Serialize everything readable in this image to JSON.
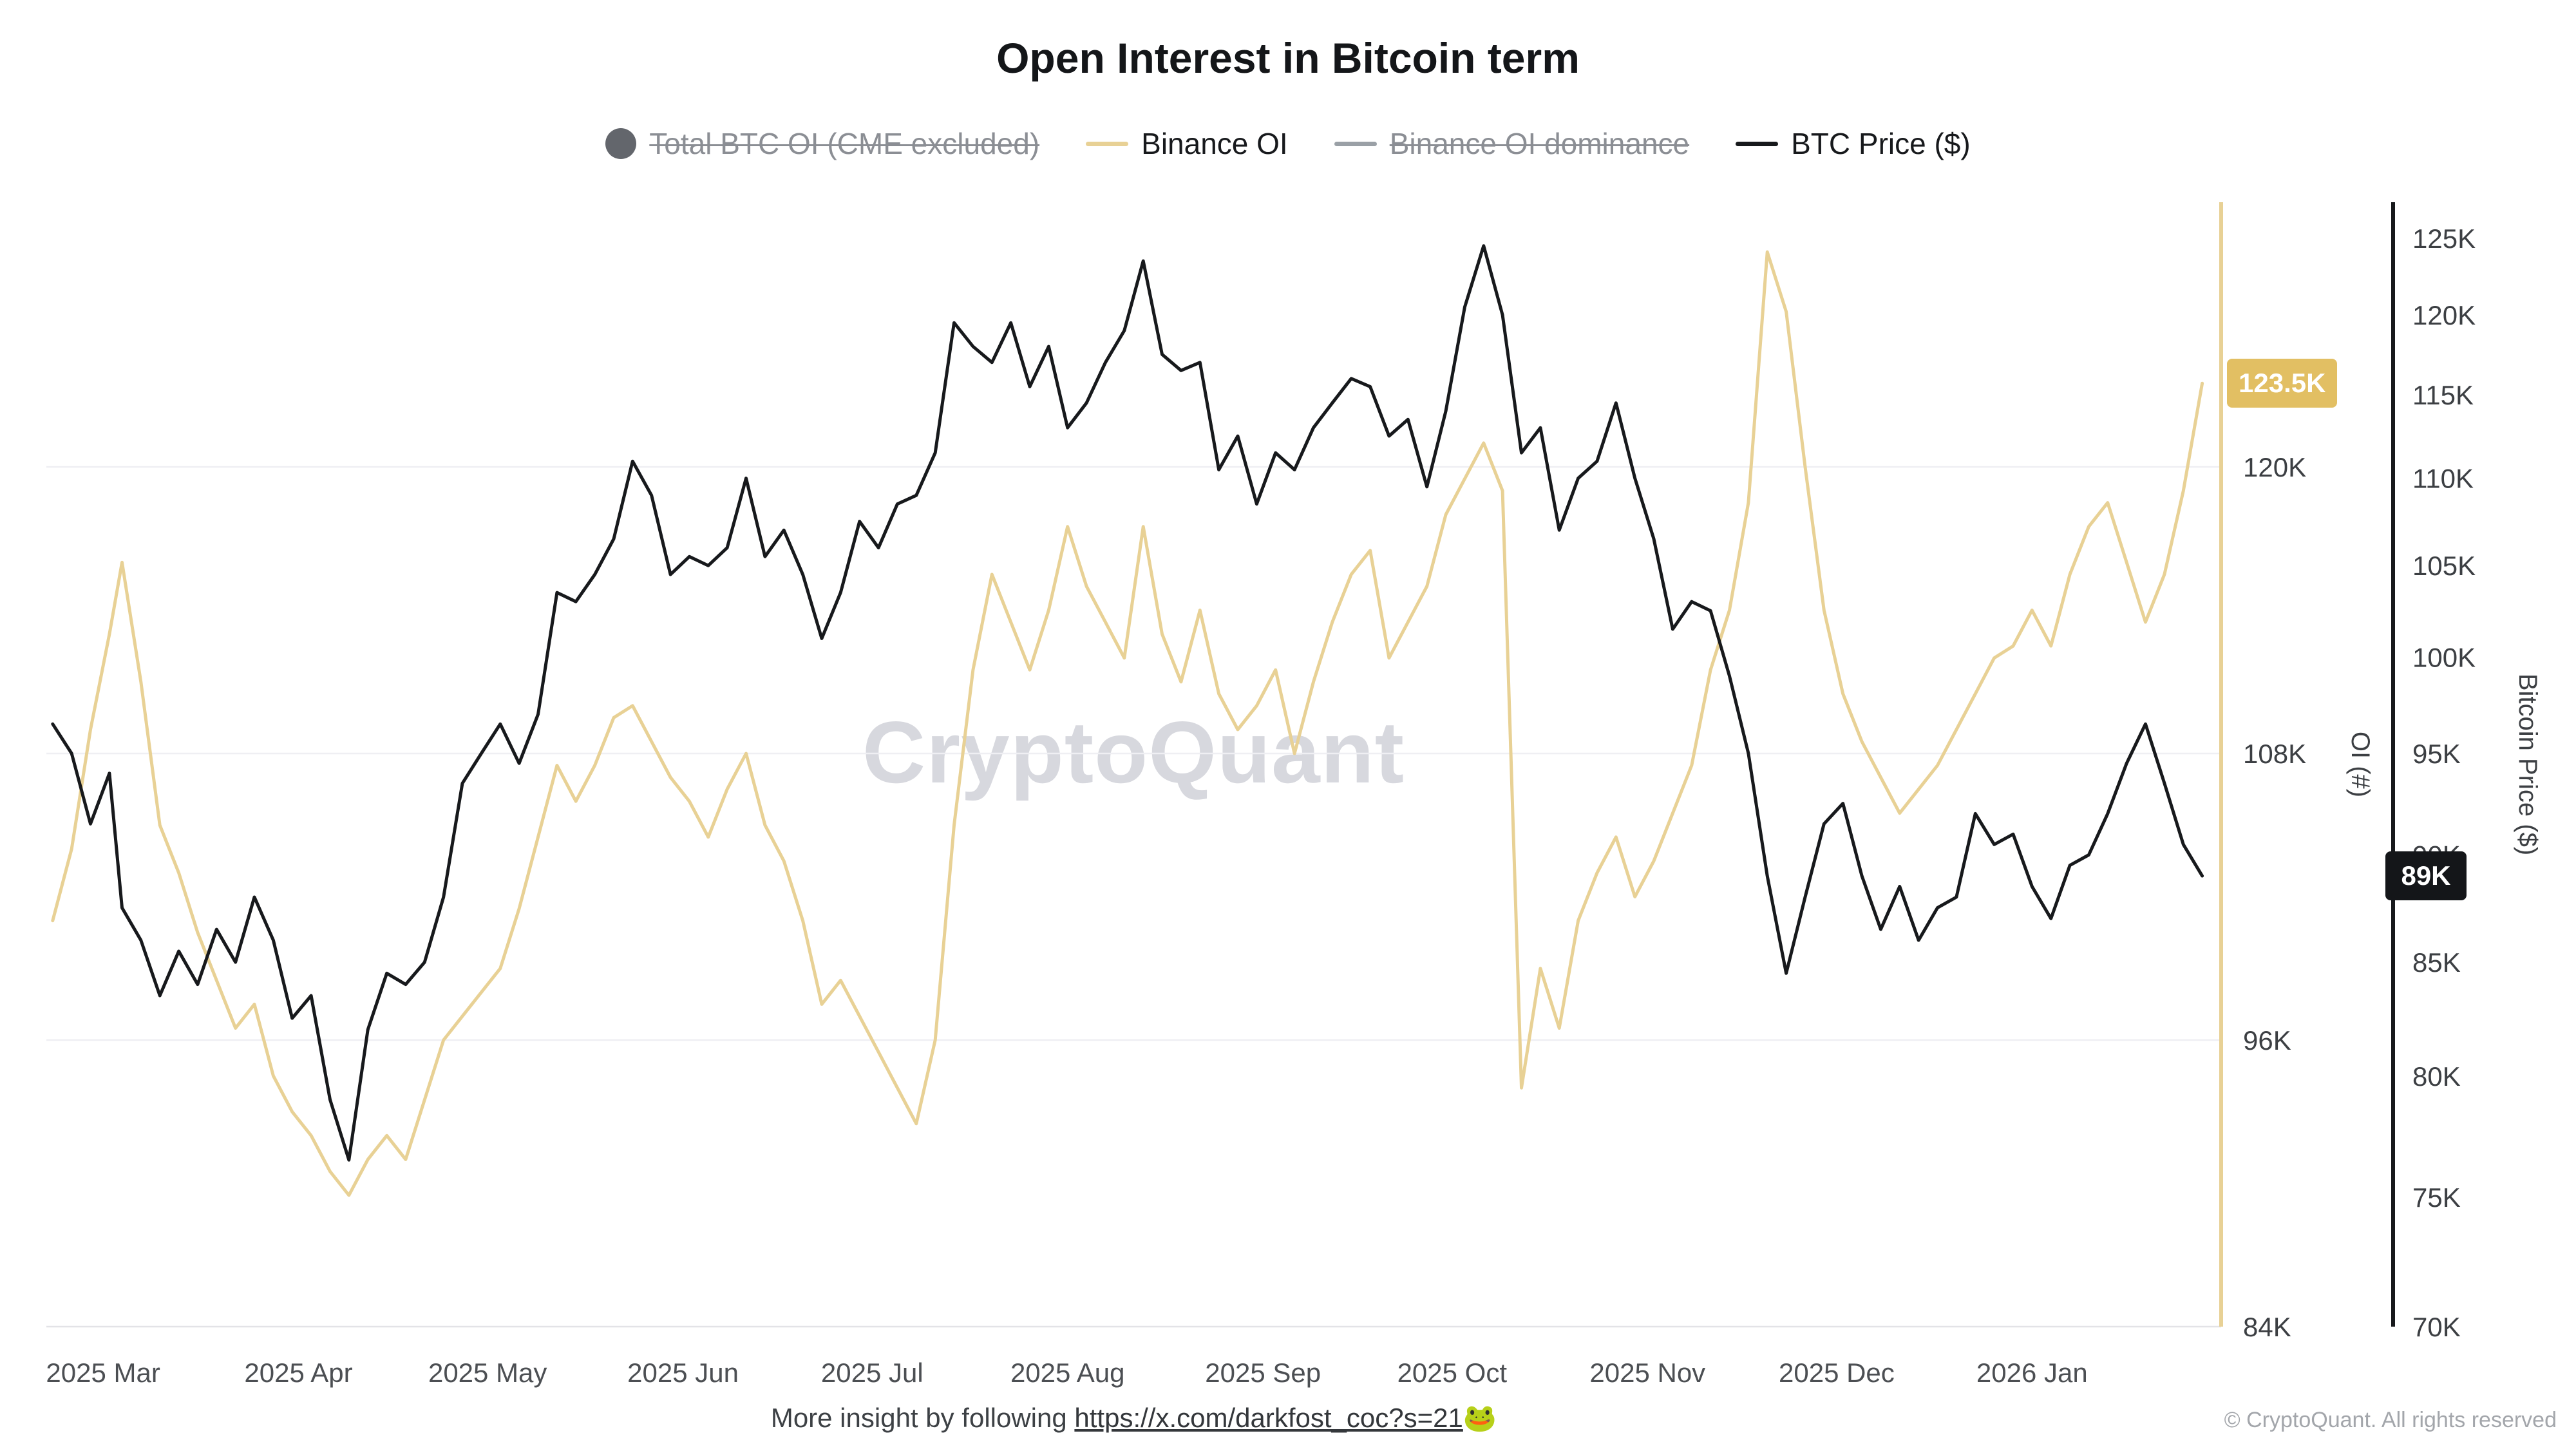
{
  "title": "Open Interest in Bitcoin term",
  "watermark": "CryptoQuant",
  "legend": {
    "items": [
      {
        "id": "total-btc-oi",
        "label": "Total BTC OI (CME excluded)",
        "marker": "circle",
        "color": "#63666c",
        "disabled": true
      },
      {
        "id": "binance-oi",
        "label": "Binance OI",
        "marker": "line",
        "color": "#e8d195",
        "disabled": false
      },
      {
        "id": "binance-oi-dominance",
        "label": "Binance OI dominance",
        "marker": "line",
        "color": "#9aa0a6",
        "disabled": true
      },
      {
        "id": "btc-price",
        "label": "BTC Price ($)",
        "marker": "line",
        "color": "#17191c",
        "disabled": false
      }
    ]
  },
  "axes": {
    "oi": {
      "title": "OI (#)",
      "color": "#e8d195",
      "badge_color": "#e2bf63",
      "scale": "linear",
      "ticks": [
        "84K",
        "96K",
        "108K",
        "120K"
      ],
      "tick_values": [
        84,
        96,
        108,
        120
      ],
      "current_badge": {
        "label": "123.5K",
        "value": 123.5
      }
    },
    "price": {
      "title": "Bitcoin Price ($)",
      "color": "#17191c",
      "badge_color": "#141619",
      "scale": "log",
      "ticks": [
        "70K",
        "75K",
        "80K",
        "85K",
        "90K",
        "95K",
        "100K",
        "105K",
        "110K",
        "115K",
        "120K",
        "125K"
      ],
      "tick_values": [
        70,
        75,
        80,
        85,
        90,
        95,
        100,
        105,
        110,
        115,
        120,
        125
      ],
      "current_badge": {
        "label": "89K",
        "value": 89
      }
    },
    "x": {
      "ticks": [
        {
          "label": "2025 Mar",
          "date": "2025-03-01"
        },
        {
          "label": "2025 Apr",
          "date": "2025-04-01"
        },
        {
          "label": "2025 May",
          "date": "2025-05-01"
        },
        {
          "label": "2025 Jun",
          "date": "2025-06-01"
        },
        {
          "label": "2025 Jul",
          "date": "2025-07-01"
        },
        {
          "label": "2025 Aug",
          "date": "2025-08-01"
        },
        {
          "label": "2025 Sep",
          "date": "2025-09-01"
        },
        {
          "label": "2025 Oct",
          "date": "2025-10-01"
        },
        {
          "label": "2025 Nov",
          "date": "2025-11-01"
        },
        {
          "label": "2025 Dec",
          "date": "2025-12-01"
        },
        {
          "label": "2026 Jan",
          "date": "2026-01-01"
        }
      ]
    }
  },
  "footer": {
    "insight_prefix": "More insight by following ",
    "insight_link": "https://x.com/darkfost_coc?s=21",
    "insight_emoji": "🐸",
    "copyright": "© CryptoQuant. All rights reserved"
  },
  "chart_data": {
    "type": "line",
    "title": "Open Interest in Bitcoin term",
    "legend_position": "top",
    "grid": "horizontal",
    "x_range": [
      "2025-02-20",
      "2026-01-31"
    ],
    "y_axes": {
      "oi": {
        "label": "OI (#)",
        "range": [
          84,
          131
        ],
        "scale": "linear",
        "unit": "K"
      },
      "price": {
        "label": "Bitcoin Price ($)",
        "range": [
          70,
          125
        ],
        "scale": "log",
        "unit": "K USD"
      }
    },
    "hidden_series": [
      "Total BTC OI (CME excluded)",
      "Binance OI dominance"
    ],
    "x": [
      "2025-02-21",
      "2025-02-24",
      "2025-02-27",
      "2025-03-02",
      "2025-03-04",
      "2025-03-07",
      "2025-03-10",
      "2025-03-13",
      "2025-03-16",
      "2025-03-19",
      "2025-03-22",
      "2025-03-25",
      "2025-03-28",
      "2025-03-31",
      "2025-04-03",
      "2025-04-06",
      "2025-04-09",
      "2025-04-12",
      "2025-04-15",
      "2025-04-18",
      "2025-04-21",
      "2025-04-24",
      "2025-04-27",
      "2025-04-30",
      "2025-05-03",
      "2025-05-06",
      "2025-05-09",
      "2025-05-12",
      "2025-05-15",
      "2025-05-18",
      "2025-05-21",
      "2025-05-24",
      "2025-05-27",
      "2025-05-30",
      "2025-06-02",
      "2025-06-05",
      "2025-06-08",
      "2025-06-11",
      "2025-06-14",
      "2025-06-17",
      "2025-06-20",
      "2025-06-23",
      "2025-06-26",
      "2025-06-29",
      "2025-07-02",
      "2025-07-05",
      "2025-07-08",
      "2025-07-11",
      "2025-07-14",
      "2025-07-17",
      "2025-07-20",
      "2025-07-23",
      "2025-07-26",
      "2025-07-29",
      "2025-08-01",
      "2025-08-04",
      "2025-08-07",
      "2025-08-10",
      "2025-08-13",
      "2025-08-16",
      "2025-08-19",
      "2025-08-22",
      "2025-08-25",
      "2025-08-28",
      "2025-08-31",
      "2025-09-03",
      "2025-09-06",
      "2025-09-09",
      "2025-09-12",
      "2025-09-15",
      "2025-09-18",
      "2025-09-21",
      "2025-09-24",
      "2025-09-27",
      "2025-09-30",
      "2025-10-03",
      "2025-10-06",
      "2025-10-09",
      "2025-10-12",
      "2025-10-15",
      "2025-10-18",
      "2025-10-21",
      "2025-10-24",
      "2025-10-27",
      "2025-10-30",
      "2025-11-02",
      "2025-11-05",
      "2025-11-08",
      "2025-11-11",
      "2025-11-14",
      "2025-11-17",
      "2025-11-20",
      "2025-11-23",
      "2025-11-26",
      "2025-11-29",
      "2025-12-02",
      "2025-12-05",
      "2025-12-08",
      "2025-12-11",
      "2025-12-14",
      "2025-12-17",
      "2025-12-20",
      "2025-12-23",
      "2025-12-26",
      "2025-12-29",
      "2026-01-01",
      "2026-01-04",
      "2026-01-07",
      "2026-01-10",
      "2026-01-13",
      "2026-01-16",
      "2026-01-19",
      "2026-01-22",
      "2026-01-25",
      "2026-01-28"
    ],
    "series": [
      {
        "id": "binance-oi",
        "name": "Binance OI",
        "axis": "oi",
        "color": "#e8d195",
        "unit": "K BTC",
        "latest": 123.5,
        "values": [
          101,
          104,
          109,
          113,
          116,
          111,
          105,
          103,
          100.5,
          98.5,
          96.5,
          97.5,
          94.5,
          93,
          92,
          90.5,
          89.5,
          91,
          92,
          91,
          93.5,
          96,
          97,
          98,
          99,
          101.5,
          104.5,
          107.5,
          106,
          107.5,
          109.5,
          110,
          108.5,
          107,
          106,
          104.5,
          106.5,
          108,
          105,
          103.5,
          101,
          97.5,
          98.5,
          97,
          95.5,
          94,
          92.5,
          96,
          105,
          111.5,
          115.5,
          113.5,
          111.5,
          114,
          117.5,
          115,
          113.5,
          112,
          117.5,
          113,
          111,
          114,
          110.5,
          109,
          110,
          111.5,
          108,
          111,
          113.5,
          115.5,
          116.5,
          112,
          113.5,
          115,
          118,
          119.5,
          121,
          119,
          94,
          99,
          96.5,
          101,
          103,
          104.5,
          102,
          103.5,
          105.5,
          107.5,
          111.5,
          114,
          118.5,
          129,
          126.5,
          120,
          114,
          110.5,
          108.5,
          107,
          105.5,
          106.5,
          107.5,
          109,
          110.5,
          112,
          112.5,
          114,
          112.5,
          115.5,
          117.5,
          118.5,
          116,
          113.5,
          115.5,
          119,
          123.5
        ]
      },
      {
        "id": "btc-price",
        "name": "BTC Price ($)",
        "axis": "price",
        "color": "#17191c",
        "unit": "K USD",
        "latest": 89,
        "values": [
          96.5,
          95,
          91.5,
          94,
          87.5,
          86,
          83.5,
          85.5,
          84,
          86.5,
          85,
          88,
          86,
          82.5,
          83.5,
          79,
          76.5,
          82,
          84.5,
          84,
          85,
          88,
          93.5,
          95,
          96.5,
          94.5,
          97,
          103.5,
          103,
          104.5,
          106.5,
          111,
          109,
          104.5,
          105.5,
          105,
          106,
          110,
          105.5,
          107,
          104.5,
          101,
          103.5,
          107.5,
          106,
          108.5,
          109,
          111.5,
          119.5,
          118,
          117,
          119.5,
          115.5,
          118,
          113,
          114.5,
          117,
          119,
          123.5,
          117.5,
          116.5,
          117,
          110.5,
          112.5,
          108.5,
          111.5,
          110.5,
          113,
          114.5,
          116,
          115.5,
          112.5,
          113.5,
          109.5,
          114,
          120.5,
          124.5,
          120,
          111.5,
          113,
          107,
          110,
          111,
          114.5,
          110,
          106.5,
          101.5,
          103,
          102.5,
          99,
          95,
          89,
          84.5,
          88,
          91.5,
          92.5,
          89,
          86.5,
          88.5,
          86,
          87.5,
          88,
          92,
          90.5,
          91,
          88.5,
          87,
          89.5,
          90,
          92,
          94.5,
          96.5,
          93.5,
          90.5,
          89
        ]
      }
    ]
  }
}
